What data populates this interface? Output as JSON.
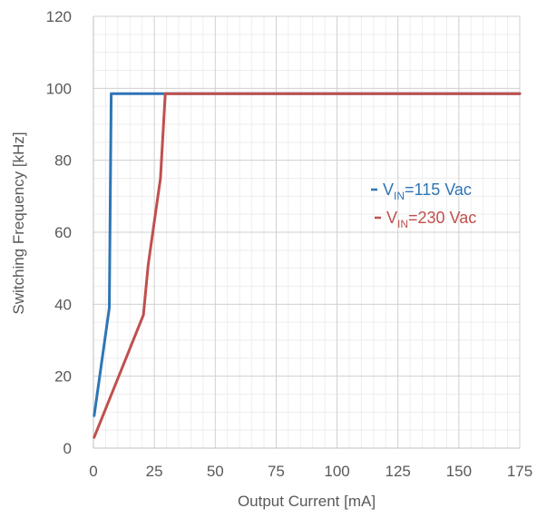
{
  "chart_data": {
    "type": "line",
    "title": "",
    "xlabel": "Output Current [mA]",
    "ylabel": "Switching Frequency [kHz]",
    "xlim": [
      0,
      175
    ],
    "ylim": [
      0,
      120
    ],
    "x_ticks": [
      0,
      25,
      50,
      75,
      100,
      125,
      150,
      175
    ],
    "y_ticks": [
      0,
      20,
      40,
      60,
      80,
      100,
      120
    ],
    "x_tick_labels": [
      "0",
      "25",
      "50",
      "75",
      "100",
      "125",
      "150",
      "175"
    ],
    "y_tick_labels": [
      "0",
      "20",
      "40",
      "60",
      "80",
      "100",
      "120"
    ],
    "x_minor_step": 5,
    "y_minor_step": 5,
    "grid": true,
    "legend_position": "right",
    "series": [
      {
        "legend": {
          "prefix": "V",
          "subscript": "IN",
          "suffix": "=115 Vac"
        },
        "color": "#2e75b6",
        "x": [
          0.3,
          6.5,
          7.3,
          30,
          175
        ],
        "y": [
          9,
          39,
          98.5,
          98.5,
          98.5
        ]
      },
      {
        "legend": {
          "prefix": "V",
          "subscript": "IN",
          "suffix": "=230 Vac"
        },
        "color": "#c0504d",
        "x": [
          0.3,
          20.5,
          22.5,
          27.5,
          29.5,
          100,
          175
        ],
        "y": [
          3,
          37,
          51,
          75,
          98.5,
          98.5,
          98.5
        ]
      }
    ]
  }
}
